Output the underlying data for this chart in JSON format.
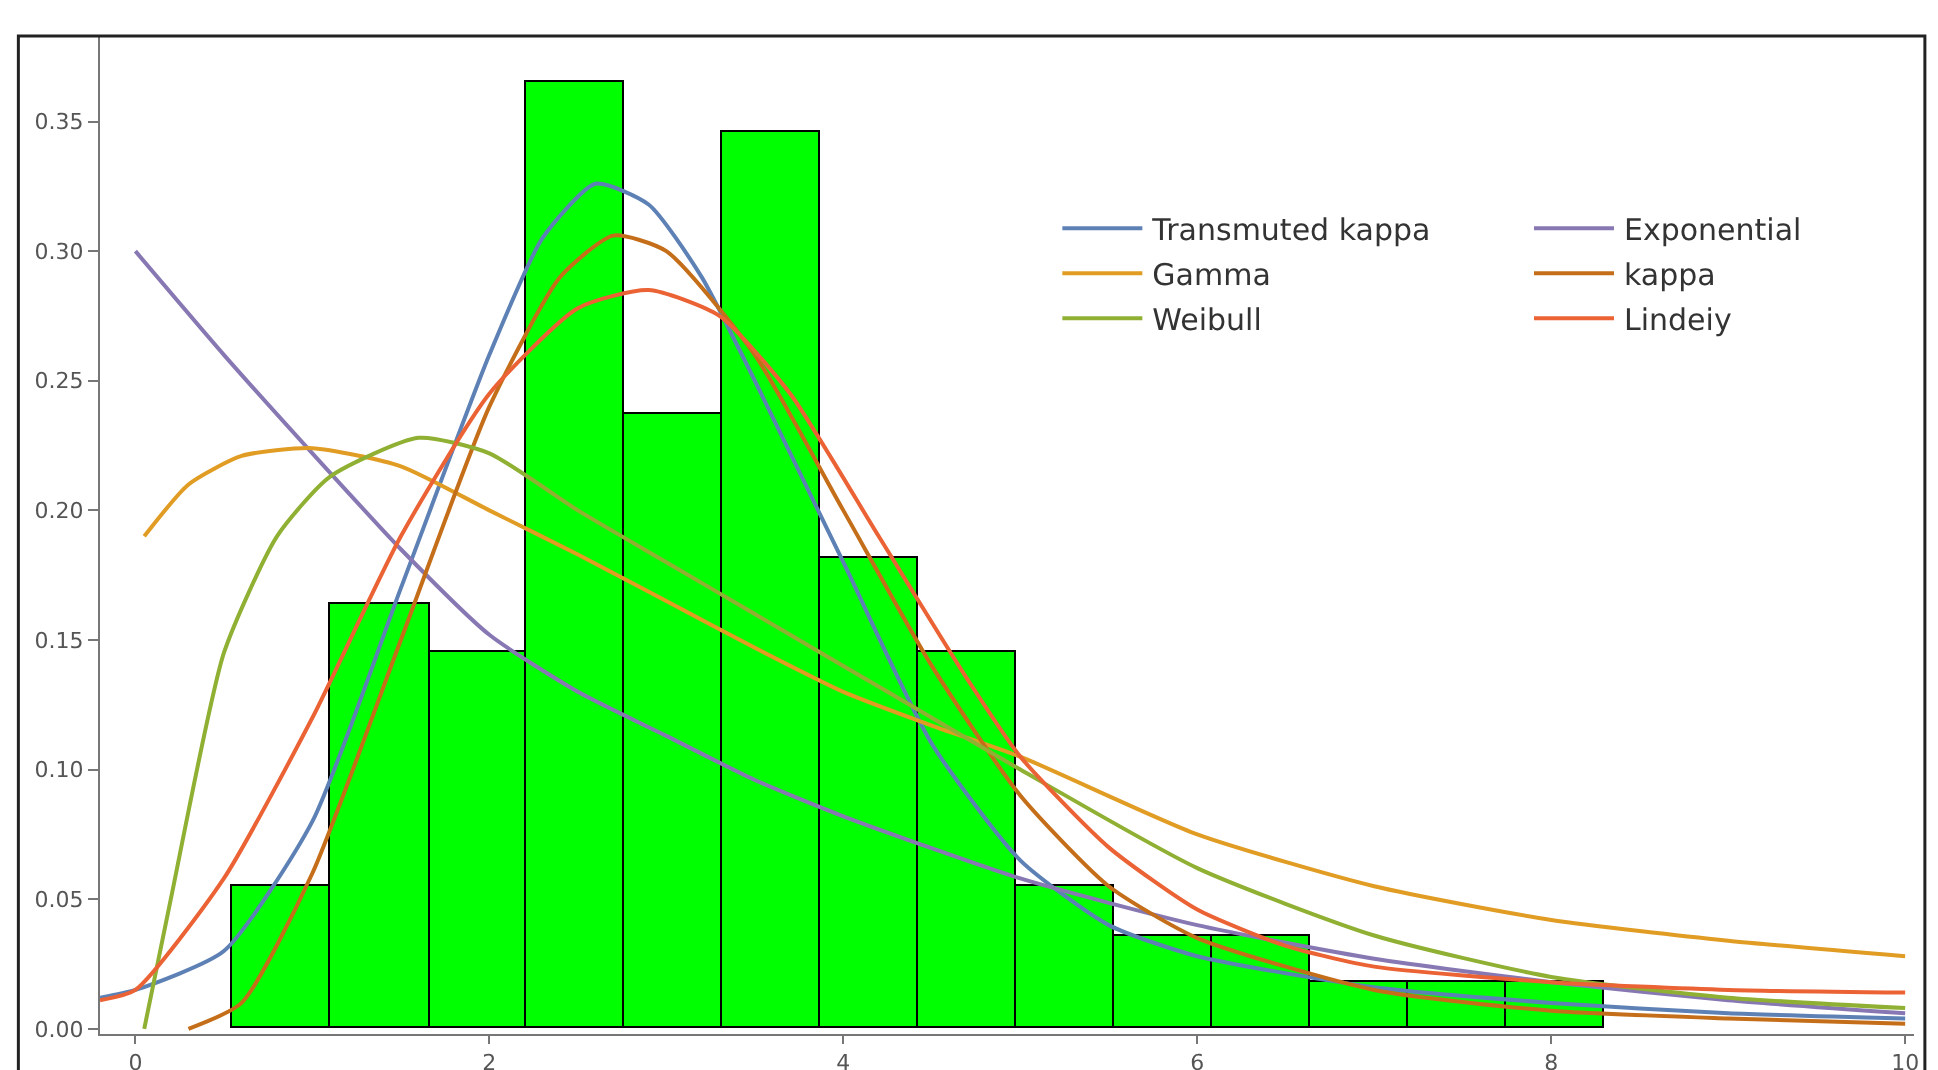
{
  "chart_data": {
    "type": "histogram",
    "bins": [
      0.55,
      1.1,
      1.66,
      2.21,
      2.76,
      3.32,
      3.87,
      4.42,
      4.98,
      5.53,
      6.08,
      6.64,
      7.19,
      7.74,
      8.3
    ],
    "values": [
      0.055,
      0.164,
      0.145,
      0.365,
      0.237,
      0.346,
      0.182,
      0.145,
      0.055,
      0.036,
      0.036,
      0.018,
      0.018,
      0.018
    ],
    "color": "#00ff00",
    "series": [
      {
        "name": "Transmuted kappa",
        "type": "line",
        "color": "#5e81b5",
        "x": [
          -0.2,
          0,
          0.5,
          1,
          1.5,
          2,
          2.3,
          2.6,
          2.9,
          3.2,
          3.5,
          4,
          4.5,
          5,
          5.5,
          6,
          7,
          8,
          9,
          10
        ],
        "values": [
          0.012,
          0.015,
          0.03,
          0.08,
          0.17,
          0.26,
          0.305,
          0.326,
          0.318,
          0.29,
          0.25,
          0.18,
          0.11,
          0.065,
          0.04,
          0.028,
          0.016,
          0.01,
          0.006,
          0.004
        ]
      },
      {
        "name": "Exponential",
        "type": "line",
        "color": "#8778b3",
        "x": [
          0,
          0.5,
          1,
          1.5,
          2,
          2.5,
          3,
          3.5,
          4,
          5,
          6,
          7,
          8,
          9,
          10
        ],
        "values": [
          0.3,
          0.26,
          0.222,
          0.185,
          0.152,
          0.13,
          0.113,
          0.096,
          0.082,
          0.058,
          0.04,
          0.027,
          0.018,
          0.011,
          0.006
        ]
      },
      {
        "name": "Gamma",
        "type": "line",
        "color": "#e19c24",
        "x": [
          0.05,
          0.3,
          0.6,
          1,
          1.5,
          2,
          2.5,
          3,
          3.5,
          4,
          4.5,
          5,
          6,
          7,
          8,
          9,
          10
        ],
        "values": [
          0.19,
          0.21,
          0.221,
          0.224,
          0.217,
          0.2,
          0.183,
          0.165,
          0.147,
          0.13,
          0.117,
          0.105,
          0.075,
          0.055,
          0.042,
          0.034,
          0.028
        ]
      },
      {
        "name": "kappa",
        "type": "line",
        "color": "#c56e1a",
        "x": [
          0.3,
          0.6,
          1,
          1.5,
          2,
          2.4,
          2.7,
          3,
          3.5,
          4,
          4.5,
          5,
          5.5,
          6,
          7,
          8,
          9,
          10
        ],
        "values": [
          0,
          0.01,
          0.06,
          0.15,
          0.24,
          0.29,
          0.306,
          0.3,
          0.26,
          0.2,
          0.14,
          0.09,
          0.055,
          0.035,
          0.015,
          0.007,
          0.004,
          0.002
        ]
      },
      {
        "name": "Weibull",
        "type": "line",
        "color": "#8fb032",
        "x": [
          0.05,
          0.2,
          0.5,
          0.8,
          1.1,
          1.6,
          2,
          2.5,
          3,
          3.5,
          4,
          4.5,
          5,
          6,
          7,
          8,
          9,
          10
        ],
        "values": [
          0,
          0.05,
          0.145,
          0.19,
          0.213,
          0.228,
          0.222,
          0.2,
          0.18,
          0.16,
          0.14,
          0.12,
          0.1,
          0.062,
          0.036,
          0.02,
          0.012,
          0.008
        ]
      },
      {
        "name": "Lindeiy",
        "type": "line",
        "color": "#eb6235",
        "x": [
          -0.2,
          0,
          0.5,
          1,
          1.5,
          2,
          2.5,
          2.9,
          3.3,
          3.7,
          4.2,
          4.7,
          5,
          5.5,
          6,
          6.5,
          7,
          8,
          9,
          10
        ],
        "values": [
          0.011,
          0.015,
          0.058,
          0.12,
          0.19,
          0.245,
          0.278,
          0.285,
          0.275,
          0.245,
          0.19,
          0.135,
          0.105,
          0.07,
          0.046,
          0.032,
          0.024,
          0.018,
          0.015,
          0.014
        ]
      }
    ],
    "xlim": [
      -0.2,
      10.05
    ],
    "ylim": [
      -0.002,
      0.383
    ],
    "xticks": [
      0,
      2,
      4,
      6,
      8,
      10
    ],
    "yticks": [
      {
        "value": 0,
        "label": "0.00"
      },
      0.05,
      {
        "value": 0.1,
        "label": "0.10"
      },
      0.15,
      {
        "value": 0.2,
        "label": "0.20"
      },
      0.25,
      {
        "value": 0.3,
        "label": "0.30"
      },
      0.35
    ],
    "legend": "top right",
    "grid": false
  }
}
